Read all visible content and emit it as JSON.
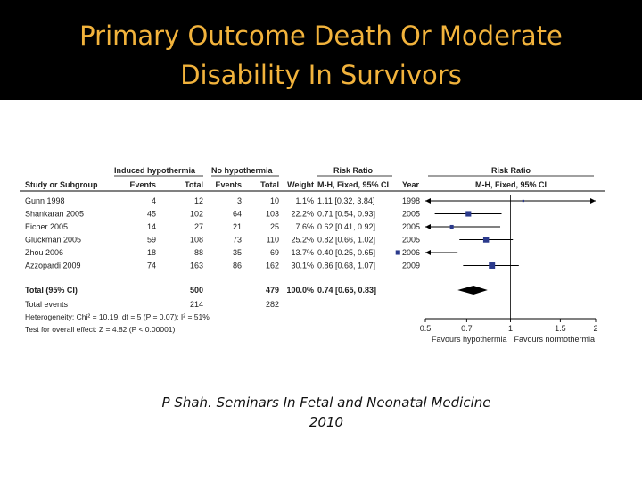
{
  "slide": {
    "title_line1": "Primary Outcome Death Or Moderate",
    "title_line2": "Disability In Survivors",
    "caption_line1": "P Shah. Seminars In Fetal and Neonatal Medicine",
    "caption_line2": "2010"
  },
  "chart_data": {
    "type": "forest",
    "group_headers": {
      "experimental": "Induced hypothermia",
      "control": "No hypothermia",
      "effect": "Risk Ratio",
      "plot": "Risk Ratio"
    },
    "columns": {
      "study": "Study or Subgroup",
      "exp_events": "Events",
      "exp_total": "Total",
      "ctrl_events": "Events",
      "ctrl_total": "Total",
      "weight": "Weight",
      "ci": "M-H, Fixed, 95% CI",
      "year": "Year",
      "plot": "M-H, Fixed, 95% CI"
    },
    "studies": [
      {
        "study": "Gunn 1998",
        "exp_events": "4",
        "exp_total": "12",
        "ctrl_events": "3",
        "ctrl_total": "10",
        "weight": "1.1%",
        "ci_text": "1.11 [0.32, 3.84]",
        "year": "1998",
        "rr": 1.11,
        "lo": 0.32,
        "hi": 3.84,
        "w": 1.1
      },
      {
        "study": "Shankaran 2005",
        "exp_events": "45",
        "exp_total": "102",
        "ctrl_events": "64",
        "ctrl_total": "103",
        "weight": "22.2%",
        "ci_text": "0.71 [0.54, 0.93]",
        "year": "2005",
        "rr": 0.71,
        "lo": 0.54,
        "hi": 0.93,
        "w": 22.2
      },
      {
        "study": "Eicher 2005",
        "exp_events": "14",
        "exp_total": "27",
        "ctrl_events": "21",
        "ctrl_total": "25",
        "weight": "7.6%",
        "ci_text": "0.62 [0.41, 0.92]",
        "year": "2005",
        "rr": 0.62,
        "lo": 0.41,
        "hi": 0.92,
        "w": 7.6
      },
      {
        "study": "Gluckman 2005",
        "exp_events": "59",
        "exp_total": "108",
        "ctrl_events": "73",
        "ctrl_total": "110",
        "weight": "25.2%",
        "ci_text": "0.82 [0.66, 1.02]",
        "year": "2005",
        "rr": 0.82,
        "lo": 0.66,
        "hi": 1.02,
        "w": 25.2
      },
      {
        "study": "Zhou 2006",
        "exp_events": "18",
        "exp_total": "88",
        "ctrl_events": "35",
        "ctrl_total": "69",
        "weight": "13.7%",
        "ci_text": "0.40 [0.25, 0.65]",
        "year": "2006",
        "rr": 0.4,
        "lo": 0.25,
        "hi": 0.65,
        "w": 13.7
      },
      {
        "study": "Azzopardi 2009",
        "exp_events": "74",
        "exp_total": "163",
        "ctrl_events": "86",
        "ctrl_total": "162",
        "weight": "30.1%",
        "ci_text": "0.86 [0.68, 1.07]",
        "year": "2009",
        "rr": 0.86,
        "lo": 0.68,
        "hi": 1.07,
        "w": 30.1
      }
    ],
    "total": {
      "label": "Total (95% CI)",
      "exp_total": "500",
      "ctrl_total": "479",
      "weight": "100.0%",
      "ci_text": "0.74 [0.65, 0.83]",
      "rr": 0.74,
      "lo": 0.65,
      "hi": 0.83
    },
    "total_events": {
      "label": "Total events",
      "exp": "214",
      "ctrl": "282"
    },
    "heterogeneity": "Heterogeneity: Chi² = 10.19, df = 5 (P = 0.07); I² = 51%",
    "overall_effect": "Test for overall effect: Z = 4.82 (P < 0.00001)",
    "axis": {
      "scale": "log",
      "ticks": [
        0.5,
        0.7,
        1,
        1.5,
        2
      ],
      "tick_labels": [
        "0.5",
        "0.7",
        "1",
        "1.5",
        "2"
      ],
      "xlim": [
        0.5,
        2
      ],
      "reference": 1,
      "left_label": "Favours hypothermia",
      "right_label": "Favours normothermia"
    },
    "colors": {
      "marker": "#2b3a8c",
      "diamond": "#000000",
      "line": "#000000"
    }
  }
}
